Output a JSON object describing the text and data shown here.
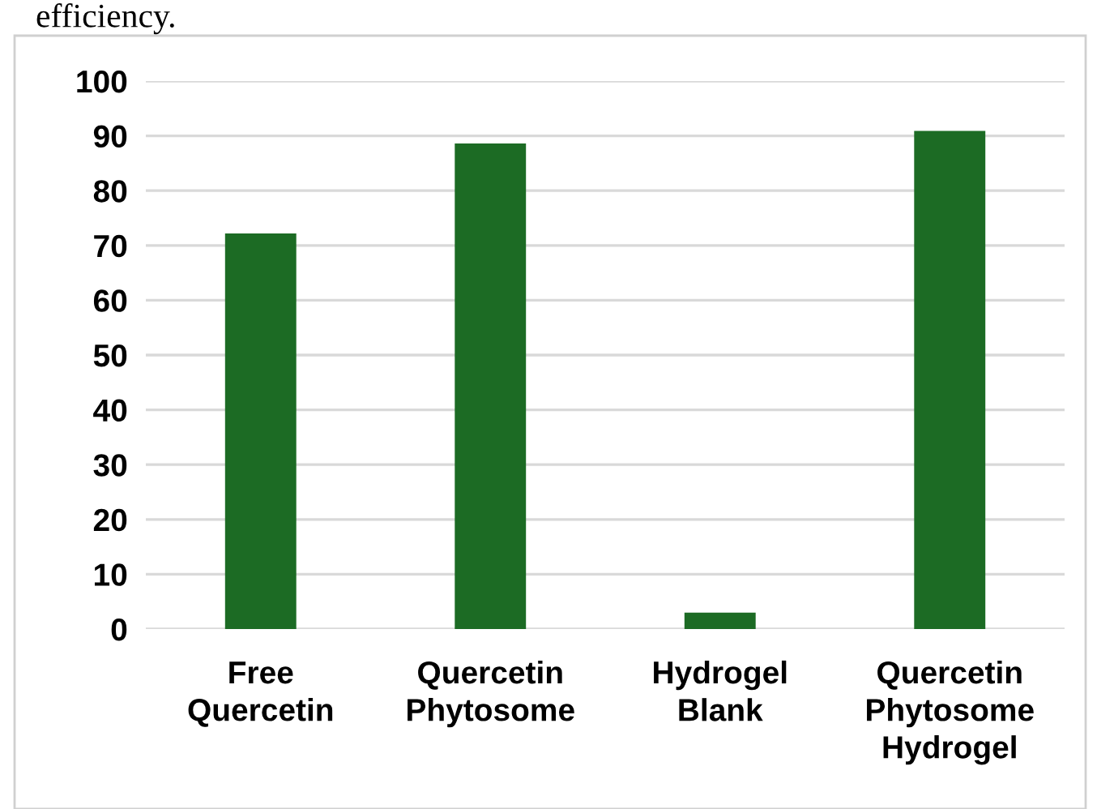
{
  "chart_data": {
    "type": "bar",
    "categories": [
      "Free\nQuercetin",
      "Quercetin\nPhytosome",
      "Hydrogel\nBlank",
      "Quercetin\nPhytosome\nHydrogel"
    ],
    "values": [
      72.2,
      88.6,
      3,
      90.9
    ],
    "color": "#1c6b24",
    "ylim": [
      0,
      100
    ],
    "yticks": [
      0,
      10,
      20,
      30,
      40,
      50,
      60,
      70,
      80,
      90,
      100
    ],
    "grid": "y",
    "annotations": [
      "efficiency."
    ]
  }
}
